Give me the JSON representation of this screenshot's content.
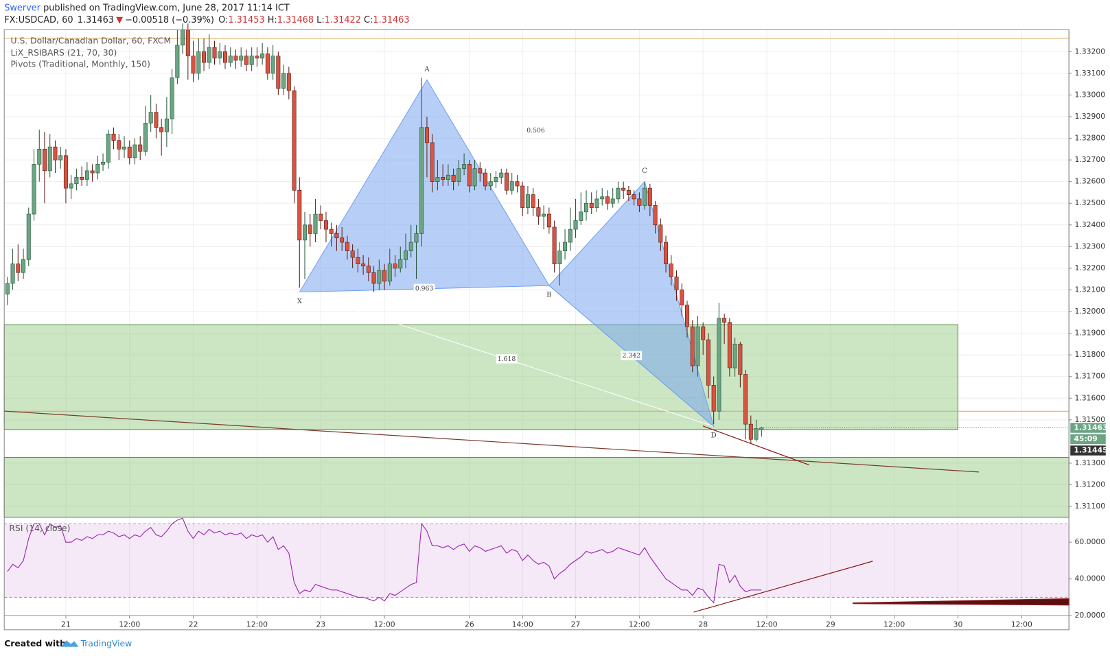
{
  "header": {
    "author": "Swerver",
    "published": "published on TradingView.com, June 28, 2017 11:14 ICT"
  },
  "quote": {
    "symbol": "FX:USDCAD, 60",
    "last": "1.31463",
    "arrow": "▼",
    "change": "−0.00518 (−0.39%)",
    "ohlc": [
      {
        "label": "O:",
        "value": "1.31453"
      },
      {
        "label": "H:",
        "value": "1.31468"
      },
      {
        "label": "L:",
        "value": "1.31422"
      },
      {
        "label": "C:",
        "value": "1.31463"
      }
    ]
  },
  "footer": {
    "created": "Created with",
    "brand": "TradingView"
  },
  "chart_data": {
    "type": "candlestick",
    "legend_lines": [
      "U.S. Dollar/Canadian Dollar, 60, FXCM",
      "LiX_RSIBARS (21, 70, 30)",
      "Pivots (Traditional, Monthly, 150)"
    ],
    "up_color": "#6ba583",
    "down_color": "#d75442",
    "grid": true,
    "xlim": [
      -11.6,
      188.9
    ],
    "ylim": [
      1.3105,
      1.333
    ],
    "xticks": [
      {
        "value": 0,
        "label": "21"
      },
      {
        "value": 12,
        "label": "12:00"
      },
      {
        "value": 24,
        "label": "22"
      },
      {
        "value": 36,
        "label": "12:00"
      },
      {
        "value": 48,
        "label": "23"
      },
      {
        "value": 60,
        "label": "12:00"
      },
      {
        "value": 76,
        "label": "26"
      },
      {
        "value": 86,
        "label": "14:00"
      },
      {
        "value": 96,
        "label": "27"
      },
      {
        "value": 108,
        "label": "12:00"
      },
      {
        "value": 120,
        "label": "28"
      },
      {
        "value": 132,
        "label": "12:00"
      },
      {
        "value": 144,
        "label": "29"
      },
      {
        "value": 156,
        "label": "12:00"
      },
      {
        "value": 168,
        "label": "30"
      },
      {
        "value": 180,
        "label": "12:00"
      }
    ],
    "yticks": [
      {
        "value": 1.311,
        "label": "1.31100"
      },
      {
        "value": 1.312,
        "label": "1.31200"
      },
      {
        "value": 1.313,
        "label": "1.31300"
      },
      {
        "value": 1.315,
        "label": "1.31500"
      },
      {
        "value": 1.316,
        "label": "1.31600"
      },
      {
        "value": 1.317,
        "label": "1.31700"
      },
      {
        "value": 1.318,
        "label": "1.31800"
      },
      {
        "value": 1.319,
        "label": "1.31900"
      },
      {
        "value": 1.32,
        "label": "1.32000"
      },
      {
        "value": 1.321,
        "label": "1.32100"
      },
      {
        "value": 1.322,
        "label": "1.32200"
      },
      {
        "value": 1.323,
        "label": "1.32300"
      },
      {
        "value": 1.324,
        "label": "1.32400"
      },
      {
        "value": 1.325,
        "label": "1.32500"
      },
      {
        "value": 1.326,
        "label": "1.32600"
      },
      {
        "value": 1.327,
        "label": "1.32700"
      },
      {
        "value": 1.328,
        "label": "1.32800"
      },
      {
        "value": 1.329,
        "label": "1.32900"
      },
      {
        "value": 1.33,
        "label": "1.33000"
      },
      {
        "value": 1.331,
        "label": "1.33100"
      },
      {
        "value": 1.332,
        "label": "1.33200"
      }
    ],
    "x": [
      -11,
      -10,
      -9,
      -8,
      -7,
      -6,
      -5,
      -4,
      -3,
      -2,
      -1,
      0,
      1,
      2,
      3,
      4,
      5,
      6,
      7,
      8,
      9,
      10,
      11,
      12,
      13,
      14,
      15,
      16,
      17,
      18,
      19,
      20,
      21,
      22,
      23,
      24,
      25,
      26,
      27,
      28,
      29,
      30,
      31,
      32,
      33,
      34,
      35,
      36,
      37,
      38,
      39,
      40,
      41,
      42,
      43,
      44,
      45,
      46,
      47,
      48,
      49,
      50,
      51,
      52,
      53,
      54,
      55,
      56,
      57,
      58,
      59,
      60,
      61,
      62,
      63,
      64,
      65,
      66,
      67,
      68,
      69,
      70,
      71,
      72,
      73,
      74,
      75,
      76,
      77,
      78,
      79,
      80,
      81,
      82,
      83,
      84,
      85,
      86,
      87,
      88,
      89,
      90,
      91,
      92,
      93,
      94,
      95,
      96,
      97,
      98,
      99,
      100,
      101,
      102,
      103,
      104,
      105,
      106,
      107,
      108,
      109,
      110,
      111,
      112,
      113,
      114,
      115,
      116,
      117,
      118,
      119,
      120,
      121,
      122,
      123,
      124,
      125,
      126,
      127,
      128,
      129,
      130,
      131
    ],
    "open": [
      1.3208,
      1.3213,
      1.3222,
      1.3218,
      1.3224,
      1.3245,
      1.3268,
      1.3275,
      1.3265,
      1.3276,
      1.327,
      1.3272,
      1.3257,
      1.3259,
      1.3262,
      1.3261,
      1.3265,
      1.3264,
      1.3268,
      1.3269,
      1.3282,
      1.3279,
      1.3275,
      1.3276,
      1.3271,
      1.3277,
      1.3274,
      1.3287,
      1.3292,
      1.3285,
      1.3283,
      1.3289,
      1.3308,
      1.3323,
      1.333,
      1.3318,
      1.331,
      1.332,
      1.3315,
      1.3322,
      1.3317,
      1.332,
      1.3315,
      1.3318,
      1.3316,
      1.3318,
      1.3314,
      1.3318,
      1.3317,
      1.3319,
      1.331,
      1.3318,
      1.3303,
      1.331,
      1.3302,
      1.3256,
      1.3233,
      1.324,
      1.3236,
      1.3245,
      1.3242,
      1.3238,
      1.3236,
      1.3234,
      1.3232,
      1.3228,
      1.3225,
      1.3222,
      1.3221,
      1.3218,
      1.3213,
      1.3219,
      1.3214,
      1.3222,
      1.322,
      1.3224,
      1.3228,
      1.3232,
      1.3236,
      1.3285,
      1.3278,
      1.326,
      1.3262,
      1.3261,
      1.3263,
      1.326,
      1.3266,
      1.3268,
      1.3258,
      1.3266,
      1.3264,
      1.3258,
      1.326,
      1.3262,
      1.3264,
      1.3256,
      1.326,
      1.3258,
      1.3248,
      1.3254,
      1.3248,
      1.3244,
      1.3245,
      1.3239,
      1.3222,
      1.3228,
      1.3232,
      1.3238,
      1.3242,
      1.3246,
      1.325,
      1.3248,
      1.3252,
      1.3253,
      1.325,
      1.3252,
      1.3257,
      1.3256,
      1.3254,
      1.3252,
      1.3249,
      1.3257,
      1.3249,
      1.324,
      1.3232,
      1.3222,
      1.3216,
      1.321,
      1.3203,
      1.3193,
      1.3175,
      1.3193,
      1.3187,
      1.3166,
      1.3154,
      1.3197,
      1.3195,
      1.3174,
      1.3185,
      1.3171,
      1.3148,
      1.3141,
      1.31453
    ],
    "high": [
      1.3216,
      1.3229,
      1.3231,
      1.3229,
      1.3248,
      1.3275,
      1.3284,
      1.3283,
      1.3282,
      1.3279,
      1.3276,
      1.3275,
      1.3263,
      1.3266,
      1.3267,
      1.3269,
      1.3268,
      1.3272,
      1.3273,
      1.3284,
      1.3285,
      1.3282,
      1.3281,
      1.3279,
      1.328,
      1.3281,
      1.3295,
      1.33,
      1.3296,
      1.3289,
      1.3299,
      1.3312,
      1.333,
      1.3333,
      1.3333,
      1.3325,
      1.3326,
      1.3326,
      1.3328,
      1.3325,
      1.3324,
      1.3323,
      1.3322,
      1.3321,
      1.3322,
      1.3321,
      1.3322,
      1.3322,
      1.3324,
      1.3322,
      1.3323,
      1.332,
      1.3314,
      1.3313,
      1.3304,
      1.3262,
      1.3246,
      1.3245,
      1.3252,
      1.3249,
      1.3246,
      1.3241,
      1.324,
      1.3239,
      1.3235,
      1.3231,
      1.3229,
      1.3226,
      1.3225,
      1.3221,
      1.3224,
      1.3222,
      1.3229,
      1.3226,
      1.323,
      1.3236,
      1.324,
      1.324,
      1.3308,
      1.329,
      1.3282,
      1.327,
      1.3268,
      1.3268,
      1.3266,
      1.327,
      1.3273,
      1.327,
      1.327,
      1.3269,
      1.3266,
      1.3264,
      1.3265,
      1.3266,
      1.3266,
      1.3264,
      1.3263,
      1.326,
      1.3258,
      1.3257,
      1.3252,
      1.3249,
      1.3248,
      1.3242,
      1.3232,
      1.3238,
      1.3248,
      1.3252,
      1.3255,
      1.3256,
      1.3255,
      1.3256,
      1.3257,
      1.3256,
      1.3257,
      1.326,
      1.326,
      1.3258,
      1.3256,
      1.3255,
      1.326,
      1.3259,
      1.3251,
      1.3243,
      1.3235,
      1.3226,
      1.3219,
      1.3213,
      1.3205,
      1.3196,
      1.3198,
      1.3195,
      1.319,
      1.317,
      1.3204,
      1.3199,
      1.3197,
      1.3188,
      1.3186,
      1.3173,
      1.3152,
      1.315,
      1.31468
    ],
    "low": [
      1.3203,
      1.321,
      1.3214,
      1.3215,
      1.3221,
      1.3242,
      1.326,
      1.325,
      1.3262,
      1.3264,
      1.3266,
      1.325,
      1.3252,
      1.3256,
      1.3258,
      1.3258,
      1.326,
      1.3261,
      1.3265,
      1.3266,
      1.3275,
      1.327,
      1.3271,
      1.3268,
      1.3268,
      1.327,
      1.3272,
      1.3283,
      1.328,
      1.3272,
      1.3276,
      1.3282,
      1.3305,
      1.3319,
      1.3307,
      1.3306,
      1.3307,
      1.3311,
      1.3312,
      1.3314,
      1.3314,
      1.3312,
      1.3313,
      1.3312,
      1.3313,
      1.3311,
      1.3311,
      1.3313,
      1.3314,
      1.3307,
      1.3307,
      1.33,
      1.33,
      1.3298,
      1.325,
      1.3211,
      1.3215,
      1.323,
      1.3232,
      1.3238,
      1.3232,
      1.323,
      1.3228,
      1.3228,
      1.3224,
      1.322,
      1.3218,
      1.3217,
      1.3214,
      1.3209,
      1.321,
      1.321,
      1.3212,
      1.3216,
      1.3218,
      1.322,
      1.3225,
      1.3215,
      1.323,
      1.3262,
      1.3255,
      1.3256,
      1.3258,
      1.3258,
      1.3256,
      1.3258,
      1.3263,
      1.3255,
      1.3256,
      1.326,
      1.3256,
      1.3256,
      1.3257,
      1.3259,
      1.3254,
      1.3254,
      1.3255,
      1.3244,
      1.3245,
      1.3244,
      1.324,
      1.3238,
      1.3236,
      1.3218,
      1.3212,
      1.3224,
      1.3228,
      1.3234,
      1.324,
      1.3242,
      1.3245,
      1.3246,
      1.3249,
      1.3247,
      1.3248,
      1.325,
      1.3252,
      1.3251,
      1.3249,
      1.3246,
      1.3247,
      1.3244,
      1.3236,
      1.3228,
      1.3218,
      1.3212,
      1.3205,
      1.3198,
      1.3188,
      1.3172,
      1.317,
      1.318,
      1.316,
      1.3148,
      1.315,
      1.3185,
      1.317,
      1.317,
      1.3165,
      1.3141,
      1.3139,
      1.314,
      1.31422
    ],
    "close": [
      1.3213,
      1.3222,
      1.3218,
      1.3224,
      1.3245,
      1.3268,
      1.3275,
      1.3265,
      1.3276,
      1.327,
      1.3272,
      1.3257,
      1.3259,
      1.3262,
      1.3261,
      1.3265,
      1.3264,
      1.3268,
      1.3269,
      1.3282,
      1.3279,
      1.3275,
      1.3276,
      1.3271,
      1.3277,
      1.3274,
      1.3287,
      1.3292,
      1.3285,
      1.3283,
      1.3289,
      1.3308,
      1.3323,
      1.333,
      1.3318,
      1.331,
      1.332,
      1.3315,
      1.3322,
      1.3317,
      1.332,
      1.3315,
      1.3318,
      1.3316,
      1.3318,
      1.3314,
      1.3318,
      1.3317,
      1.3319,
      1.331,
      1.3318,
      1.3303,
      1.331,
      1.3302,
      1.3256,
      1.3233,
      1.324,
      1.3236,
      1.3245,
      1.3242,
      1.3238,
      1.3236,
      1.3234,
      1.3232,
      1.3228,
      1.3225,
      1.3222,
      1.3221,
      1.3218,
      1.3213,
      1.3219,
      1.3214,
      1.3222,
      1.322,
      1.3224,
      1.3228,
      1.3232,
      1.3236,
      1.3285,
      1.3278,
      1.326,
      1.3262,
      1.3261,
      1.3263,
      1.326,
      1.3266,
      1.3268,
      1.3258,
      1.3266,
      1.3264,
      1.3258,
      1.326,
      1.3262,
      1.3264,
      1.3256,
      1.326,
      1.3258,
      1.3248,
      1.3254,
      1.3248,
      1.3244,
      1.3245,
      1.3239,
      1.3222,
      1.3228,
      1.3232,
      1.3238,
      1.3242,
      1.3246,
      1.325,
      1.3248,
      1.3252,
      1.3253,
      1.325,
      1.3252,
      1.3257,
      1.3256,
      1.3254,
      1.3252,
      1.3249,
      1.3257,
      1.3249,
      1.324,
      1.3232,
      1.3222,
      1.3216,
      1.321,
      1.3203,
      1.3193,
      1.3175,
      1.3193,
      1.3187,
      1.3166,
      1.3154,
      1.3197,
      1.3195,
      1.3174,
      1.3185,
      1.3171,
      1.3148,
      1.3141,
      1.3146,
      1.31463
    ],
    "zones": [
      {
        "from": 1.31455,
        "to": 1.31939,
        "x_end": 168
      },
      {
        "from": 1.3105,
        "to": 1.31327,
        "x_end": 188.9
      }
    ],
    "pivots": [
      1.33262,
      1.3154
    ],
    "pattern": {
      "points": [
        {
          "label": "X",
          "x": 44,
          "price": 1.3209
        },
        {
          "label": "A",
          "x": 68,
          "price": 1.3307
        },
        {
          "label": "B",
          "x": 91,
          "price": 1.3212
        },
        {
          "label": "C",
          "x": 109,
          "price": 1.326
        },
        {
          "label": "D",
          "x": 122,
          "price": 1.3147
        }
      ],
      "ratios": [
        0.963,
        0.506,
        1.618,
        2.342
      ]
    },
    "price_labels": {
      "last": "1.31463",
      "countdown": "45:09",
      "low": "1.31445"
    },
    "rsi": {
      "title": "RSI (14, close)",
      "color": "#9c27b0",
      "ylim": [
        20,
        72
      ],
      "bands": [
        30,
        70
      ],
      "yticks": [
        {
          "value": 60,
          "label": "60.0000"
        },
        {
          "value": 40,
          "label": "40.0000"
        },
        {
          "value": 20,
          "label": "20.0000"
        }
      ],
      "values": [
        44,
        48,
        46,
        50,
        62,
        70,
        70,
        64,
        70,
        68,
        69,
        60,
        60,
        62,
        61,
        63,
        62,
        64,
        64,
        66,
        65,
        63,
        64,
        62,
        64,
        63,
        66,
        68,
        64,
        63,
        66,
        70,
        72,
        73,
        66,
        62,
        66,
        64,
        67,
        65,
        66,
        64,
        65,
        64,
        65,
        62,
        64,
        63,
        64,
        60,
        63,
        56,
        58,
        54,
        38,
        32,
        34,
        33,
        37,
        36,
        35,
        34,
        34,
        33,
        32,
        31,
        30,
        30,
        29,
        28,
        30,
        28,
        32,
        31,
        33,
        35,
        37,
        38,
        70,
        66,
        58,
        58,
        57,
        58,
        56,
        58,
        59,
        55,
        58,
        57,
        55,
        56,
        57,
        58,
        54,
        56,
        55,
        50,
        53,
        50,
        48,
        49,
        47,
        40,
        43,
        45,
        48,
        50,
        52,
        55,
        54,
        55,
        56,
        54,
        55,
        57,
        56,
        55,
        54,
        53,
        57,
        52,
        48,
        44,
        40,
        38,
        36,
        34,
        34,
        31,
        35,
        34,
        30,
        27,
        48,
        47,
        38,
        42,
        36,
        33,
        34,
        34,
        34
      ]
    }
  }
}
